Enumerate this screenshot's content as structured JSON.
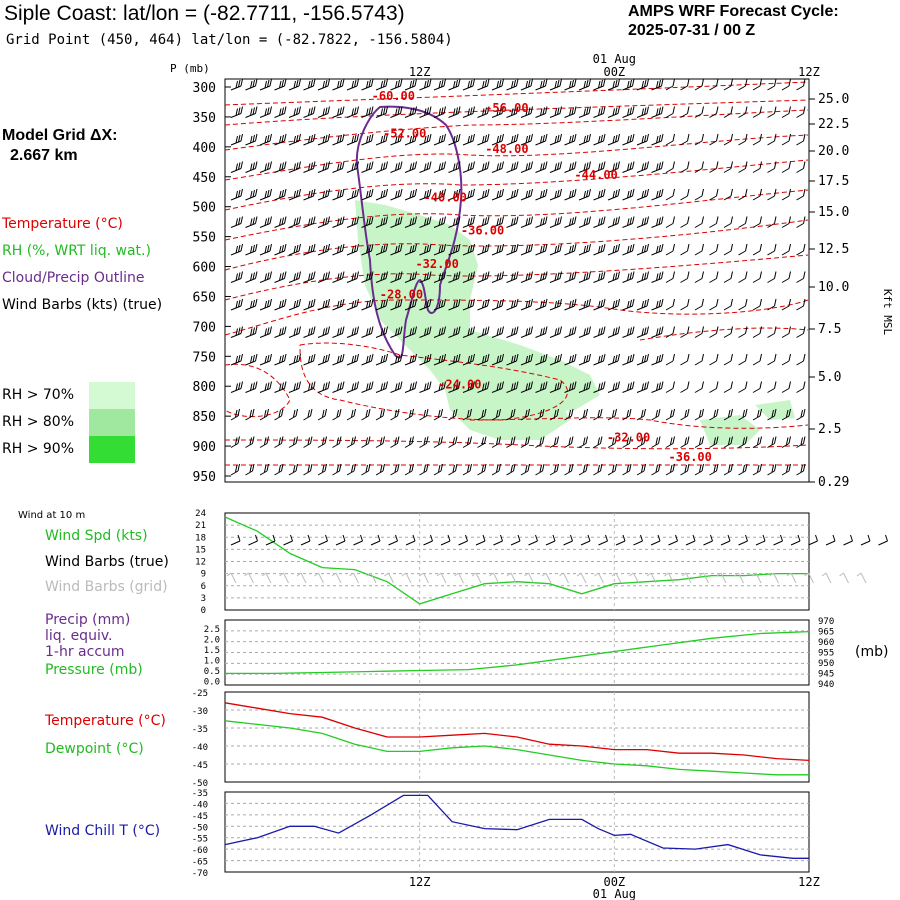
{
  "header": {
    "title": "Siple Coast:  lat/lon = (-82.7711, -156.5743)",
    "subtitle": "Grid Point (450, 464) lat/lon = (-82.7822, -156.5804)",
    "cycle_line1": "AMPS WRF Forecast Cycle:",
    "cycle_line2": "2025-07-31 / 00  Z"
  },
  "model_grid": {
    "line1": "Model Grid ΔX:",
    "line2": "2.667 km"
  },
  "legend": {
    "temperature": "Temperature (°C)",
    "rh": "RH (%, WRT liq. wat.)",
    "cloud": "Cloud/Precip Outline",
    "wind": "Wind Barbs (kts) (true)"
  },
  "rh_thresholds": [
    {
      "label": "RH > 70%",
      "color": "#d4fad4"
    },
    {
      "label": "RH > 80%",
      "color": "#a0e8a0"
    },
    {
      "label": "RH > 90%",
      "color": "#33dd33"
    }
  ],
  "colors": {
    "temperature": "#dd0000",
    "rh_fill": "#c8f5c8",
    "cloud": "#6a2c8e",
    "wind": "#000000",
    "dewpoint": "#22cc22",
    "windchill": "#1a1aaa",
    "grid_barb": "#bbbbbb"
  },
  "time_axis": {
    "top_labels": [
      "12Z",
      "00Z",
      "12Z"
    ],
    "date_label": "01 Aug",
    "bottom_labels": [
      "12Z",
      "00Z",
      "12Z"
    ]
  },
  "chart_data": [
    {
      "type": "contour",
      "name": "cross-section",
      "y_axis_label": "P (mb)",
      "pressure_ticks": [
        300,
        350,
        400,
        450,
        500,
        550,
        600,
        650,
        700,
        750,
        800,
        850,
        900,
        950
      ],
      "height_axis_label": "Kft MSL",
      "height_ticks": [
        "25.0",
        "22.5",
        "20.0",
        "17.5",
        "15.0",
        "12.5",
        "10.0",
        "7.5",
        "5.0",
        "2.5",
        "0.29"
      ],
      "temperature_contours": [
        {
          "label": "-60.00",
          "t": 10.5,
          "p": 315
        },
        {
          "label": "-56.00",
          "t": 17.5,
          "p": 335
        },
        {
          "label": "-52.00",
          "t": 11.2,
          "p": 378
        },
        {
          "label": "-48.00",
          "t": 17.5,
          "p": 404
        },
        {
          "label": "-44.00",
          "t": 23.0,
          "p": 447
        },
        {
          "label": "-40.00",
          "t": 13.7,
          "p": 485
        },
        {
          "label": "-36.00",
          "t": 16.0,
          "p": 540
        },
        {
          "label": "-32.00",
          "t": 13.2,
          "p": 596
        },
        {
          "label": "-28.00",
          "t": 11.0,
          "p": 647
        },
        {
          "label": "-24.00",
          "t": 14.6,
          "p": 797
        },
        {
          "label": "-32.00",
          "t": 25.0,
          "p": 886
        },
        {
          "label": "-36.00",
          "t": 28.8,
          "p": 918
        }
      ]
    },
    {
      "type": "line",
      "name": "wind-speed",
      "legend": [
        "Wind Spd (kts)",
        "Wind Barbs (true)",
        "Wind Barbs (grid)"
      ],
      "panel_label": "Wind at 10 m",
      "y_ticks": [
        0,
        3,
        6,
        9,
        12,
        15,
        18,
        21,
        24
      ],
      "ylim": [
        0,
        24
      ],
      "x": [
        0,
        2,
        4,
        6,
        8,
        10,
        12,
        14,
        16,
        18,
        20,
        22,
        24,
        26,
        28,
        30,
        32,
        34,
        36
      ],
      "values": [
        23,
        19.5,
        14,
        10.5,
        10,
        7,
        1.5,
        4,
        6.5,
        7,
        6.5,
        4,
        6.5,
        7,
        7.5,
        8.5,
        8.5,
        9,
        9
      ]
    },
    {
      "type": "line",
      "name": "precip-pressure",
      "legend": [
        "Precip (mm)",
        "liq. equiv.",
        "1-hr accum",
        "Pressure (mb)"
      ],
      "y_ticks_left": [
        "2.5",
        "2.0",
        "1.5",
        "1.0",
        "0.5",
        "0.0"
      ],
      "y_ticks_right": [
        970,
        965,
        960,
        955,
        950,
        945,
        940
      ],
      "right_unit": "(mb)",
      "ylim_right": [
        940,
        970
      ],
      "x": [
        0,
        3,
        6,
        9,
        12,
        15,
        18,
        21,
        24,
        27,
        30,
        33,
        36
      ],
      "pressure": [
        944,
        944,
        944.5,
        945,
        945.5,
        946,
        948.5,
        952,
        955.5,
        959,
        962.5,
        965,
        966
      ]
    },
    {
      "type": "line",
      "name": "temperature-dewpoint",
      "legend": [
        "Temperature (°C)",
        "Dewpoint (°C)"
      ],
      "y_ticks": [
        -25,
        -30,
        -35,
        -40,
        -45,
        -50
      ],
      "ylim": [
        -50,
        -25
      ],
      "x": [
        0,
        2,
        4,
        6,
        8,
        10,
        12,
        14,
        16,
        18,
        20,
        22,
        24,
        26,
        28,
        30,
        32,
        34,
        36
      ],
      "temperature": [
        -28,
        -29.5,
        -31,
        -32,
        -35,
        -37.5,
        -37.5,
        -37,
        -36.5,
        -37.5,
        -39.5,
        -40,
        -41,
        -41,
        -42,
        -42,
        -42.5,
        -43.5,
        -44
      ],
      "dewpoint": [
        -33,
        -34,
        -35,
        -36.5,
        -39.5,
        -41.5,
        -41.5,
        -40.5,
        -40,
        -41,
        -42.5,
        -44,
        -45,
        -45.5,
        -46.5,
        -47,
        -47.5,
        -48,
        -48
      ]
    },
    {
      "type": "line",
      "name": "wind-chill",
      "legend": [
        "Wind Chill T (°C)"
      ],
      "y_ticks": [
        -35,
        -40,
        -45,
        -50,
        -55,
        -60,
        -65,
        -70
      ],
      "ylim": [
        -70,
        -35
      ],
      "x": [
        0,
        2,
        4,
        5.5,
        7,
        9,
        11,
        12.5,
        14,
        16,
        18,
        20,
        22,
        23,
        24,
        25,
        27,
        29,
        31,
        33,
        35,
        36
      ],
      "values": [
        -58,
        -55,
        -50,
        -50,
        -53,
        -45,
        -36.5,
        -36.5,
        -48,
        -51,
        -51.5,
        -47,
        -47,
        -51,
        -54,
        -53.5,
        -59.5,
        -60,
        -58,
        -62.5,
        -64,
        -64
      ]
    }
  ]
}
